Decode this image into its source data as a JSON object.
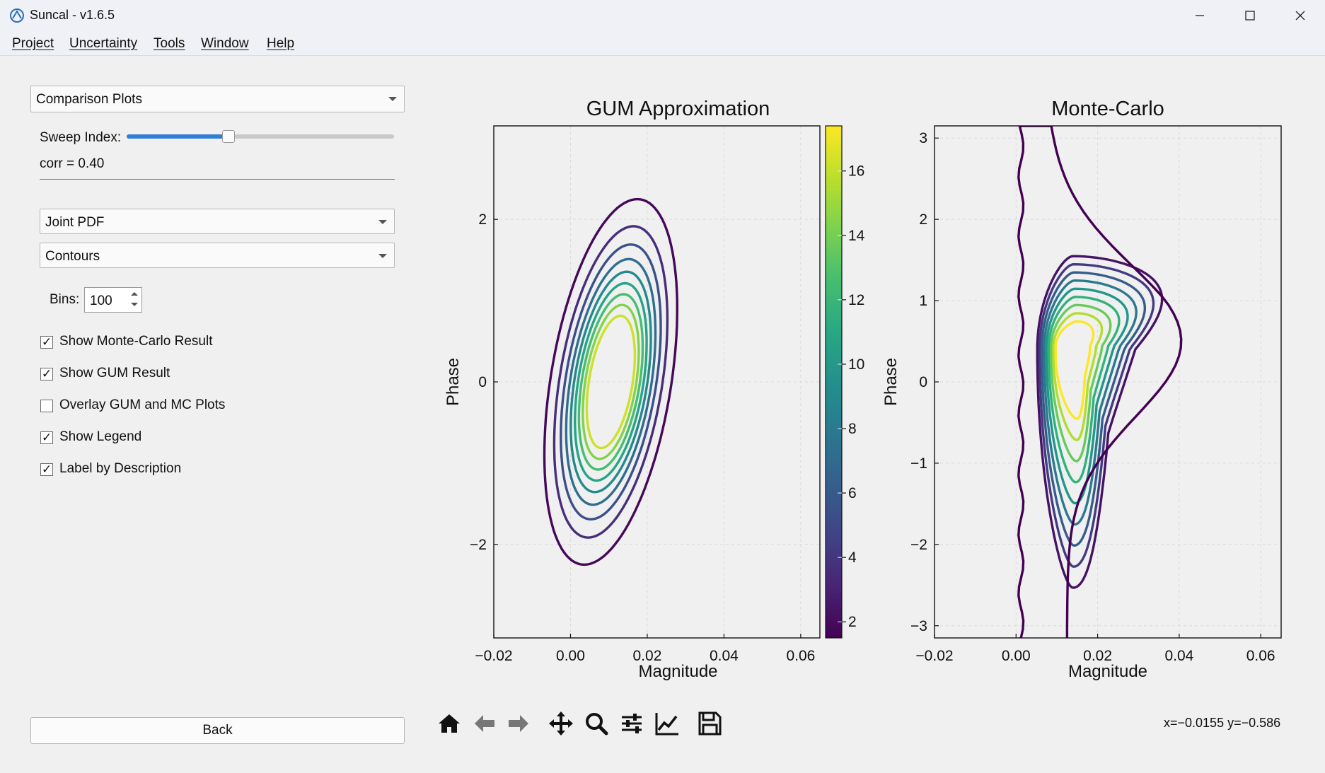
{
  "window": {
    "title": "Suncal - v1.6.5",
    "controls": [
      "minimize",
      "maximize",
      "close"
    ]
  },
  "menu": [
    "Project",
    "Uncertainty",
    "Tools",
    "Window",
    "Help"
  ],
  "left_panel": {
    "view_select": "Comparison Plots",
    "sweep_label": "Sweep Index:",
    "sweep_position": 0.38,
    "corr_text": "corr = 0.40",
    "plot_type": "Joint PDF",
    "plot_style": "Contours",
    "bins_label": "Bins:",
    "bins_value": "100",
    "options": [
      {
        "label": "Show Monte-Carlo Result",
        "checked": true
      },
      {
        "label": "Show GUM Result",
        "checked": true
      },
      {
        "label": "Overlay GUM and MC Plots",
        "checked": false
      },
      {
        "label": "Show Legend",
        "checked": true
      },
      {
        "label": "Label by Description",
        "checked": true
      }
    ],
    "back_label": "Back"
  },
  "toolbar": {
    "icons": [
      "home-icon",
      "back-arrow-icon",
      "forward-arrow-icon",
      "pan-icon",
      "zoom-icon",
      "configure-subplots-icon",
      "edit-axis-icon",
      "save-icon"
    ],
    "coords": "x=−0.0155 y=−0.586"
  },
  "chart_data": [
    {
      "type": "contour",
      "title": "GUM Approximation",
      "xlabel": "Magnitude",
      "ylabel": "Phase",
      "xlim": [
        -0.02,
        0.065
      ],
      "ylim": [
        -3.15,
        3.15
      ],
      "xticks": [
        "−0.02",
        "0.00",
        "0.02",
        "0.04",
        "0.06"
      ],
      "yticks": [
        "−2",
        "0",
        "2"
      ],
      "center": [
        0.0105,
        0.0
      ],
      "corr": 0.4,
      "levels": [
        1.8,
        3.6,
        5.4,
        7.2,
        9.0,
        10.8,
        12.6,
        14.4,
        16.2
      ],
      "colorbar": {
        "range": [
          1.5,
          17.4
        ],
        "ticks": [
          "2",
          "4",
          "6",
          "8",
          "10",
          "12",
          "14",
          "16"
        ],
        "colormap": "viridis"
      }
    },
    {
      "type": "contour",
      "title": "Monte-Carlo",
      "xlabel": "Magnitude",
      "ylabel": "Phase",
      "xlim": [
        -0.02,
        0.065
      ],
      "ylim": [
        -3.15,
        3.15
      ],
      "xticks": [
        "−0.02",
        "0.00",
        "0.02",
        "0.04",
        "0.06"
      ],
      "yticks": [
        "−3",
        "−2",
        "−1",
        "0",
        "1",
        "2",
        "3"
      ],
      "levels": [
        1.8,
        3.6,
        5.4,
        7.2,
        9.0,
        10.8,
        12.6,
        14.4,
        16.2
      ],
      "peak": [
        0.014,
        0.2
      ]
    }
  ]
}
